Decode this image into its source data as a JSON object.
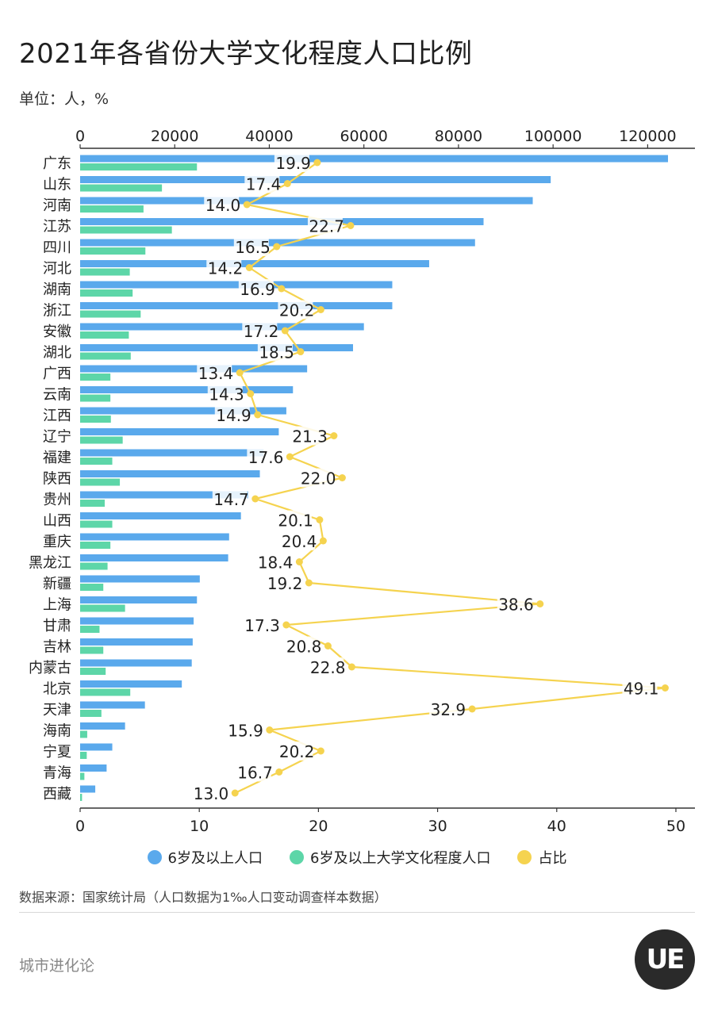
{
  "title": "2021年各省份大学文化程度人口比例",
  "unit": "单位：人，%",
  "source": "数据来源：国家统计局（人口数据为1‰人口变动调查样本数据）",
  "brand": "城市进化论",
  "logo_text": "UE",
  "colors": {
    "population": "#5aa9ec",
    "university": "#5dd6a8",
    "ratio": "#f5d34f"
  },
  "chart_data": {
    "type": "bar",
    "categories": [
      "广东",
      "山东",
      "河南",
      "江苏",
      "四川",
      "河北",
      "湖南",
      "浙江",
      "安徽",
      "湖北",
      "广西",
      "云南",
      "江西",
      "辽宁",
      "福建",
      "陕西",
      "贵州",
      "山西",
      "重庆",
      "黑龙江",
      "新疆",
      "上海",
      "甘肃",
      "吉林",
      "内蒙古",
      "北京",
      "天津",
      "海南",
      "宁夏",
      "青海",
      "西藏"
    ],
    "series": [
      {
        "name": "6岁及以上人口",
        "axis": "top",
        "values": [
          124300,
          99500,
          95700,
          85300,
          83500,
          73800,
          66000,
          66000,
          60000,
          57700,
          48000,
          45000,
          43600,
          42000,
          38800,
          38000,
          35500,
          34000,
          31500,
          31300,
          25300,
          24700,
          24000,
          23800,
          23600,
          21500,
          13700,
          9500,
          6800,
          5600,
          3200
        ]
      },
      {
        "name": "6岁及以上大学文化程度人口",
        "axis": "top",
        "values": [
          24700,
          17300,
          13400,
          19400,
          13800,
          10500,
          11100,
          12800,
          10300,
          10700,
          6400,
          6400,
          6500,
          9000,
          6800,
          8400,
          5200,
          6800,
          6400,
          5800,
          4900,
          9500,
          4100,
          4900,
          5400,
          10600,
          4500,
          1500,
          1400,
          900,
          400
        ]
      },
      {
        "name": "占比",
        "axis": "bottom",
        "type": "line",
        "values": [
          19.9,
          17.4,
          14.0,
          22.7,
          16.5,
          14.2,
          16.9,
          20.2,
          17.2,
          18.5,
          13.4,
          14.3,
          14.9,
          21.3,
          17.6,
          22.0,
          14.7,
          20.1,
          20.4,
          18.4,
          19.2,
          38.6,
          17.3,
          20.8,
          22.8,
          49.1,
          32.9,
          15.9,
          20.2,
          16.7,
          13.0
        ]
      }
    ],
    "x_top": {
      "ticks": [
        0,
        20000,
        40000,
        60000,
        80000,
        100000,
        120000
      ],
      "range": [
        0,
        130000
      ]
    },
    "x_bottom": {
      "ticks": [
        0,
        10,
        20,
        30,
        40,
        50
      ],
      "range": [
        0,
        51.6
      ]
    },
    "legend": [
      "6岁及以上人口",
      "6岁及以上大学文化程度人口",
      "占比"
    ],
    "legend_position": "bottom"
  }
}
